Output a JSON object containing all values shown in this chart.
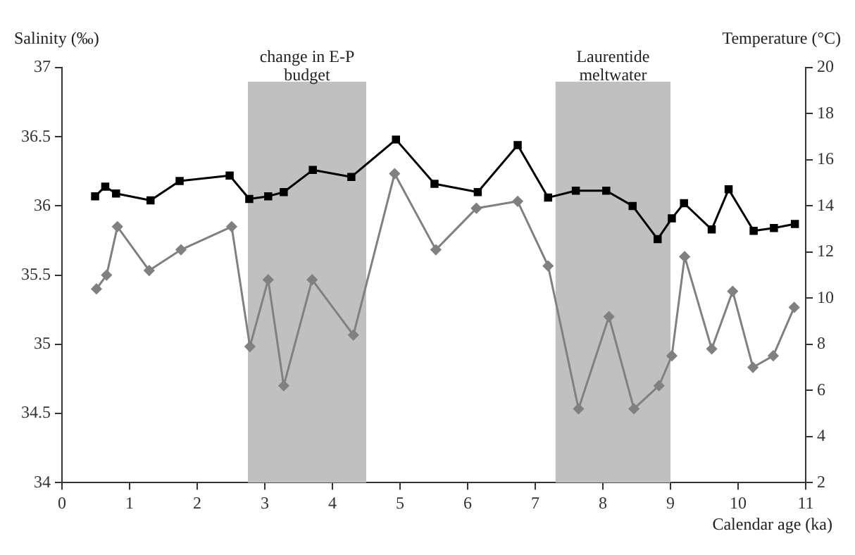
{
  "chart_data": {
    "type": "line",
    "xlabel": "Calendar age (ka)",
    "ylabel": "Salinity (‰)",
    "y2label": "Temperature (°C)",
    "xlim": [
      0,
      11
    ],
    "xticks": [
      0,
      1,
      2,
      3,
      4,
      5,
      6,
      7,
      8,
      9,
      10,
      11
    ],
    "ylim": [
      34,
      37
    ],
    "yticks": [
      34,
      34.5,
      35,
      35.5,
      36,
      36.5,
      37
    ],
    "y2lim": [
      2,
      20
    ],
    "y2ticks": [
      2,
      4,
      6,
      8,
      10,
      12,
      14,
      16,
      18,
      20
    ],
    "grid": false,
    "legend": false,
    "line_style": "solid",
    "series": [
      {
        "color": "#000000",
        "marker": "square",
        "axis": "y",
        "x": [
          0.49,
          0.64,
          0.8,
          1.31,
          1.74,
          2.48,
          2.77,
          3.05,
          3.28,
          3.71,
          4.28,
          4.94,
          5.51,
          6.15,
          6.74,
          7.19,
          7.6,
          8.05,
          8.44,
          8.81,
          9.02,
          9.2,
          9.61,
          9.86,
          10.23,
          10.53,
          10.84
        ],
        "values": [
          36.07,
          36.14,
          36.09,
          36.04,
          36.18,
          36.22,
          36.05,
          36.07,
          36.1,
          36.26,
          36.21,
          36.48,
          36.16,
          36.1,
          36.44,
          36.06,
          36.11,
          36.11,
          36.0,
          35.76,
          35.91,
          36.02,
          35.83,
          36.12,
          35.82,
          35.84,
          35.87
        ]
      },
      {
        "color": "#808080",
        "marker": "diamond",
        "axis": "y2",
        "x": [
          0.51,
          0.66,
          0.82,
          1.29,
          1.76,
          2.51,
          2.78,
          3.05,
          3.28,
          3.7,
          4.31,
          4.92,
          5.53,
          6.13,
          6.74,
          7.19,
          7.64,
          8.09,
          8.46,
          8.83,
          9.02,
          9.21,
          9.61,
          9.92,
          10.22,
          10.52,
          10.83
        ],
        "values": [
          10.4,
          11.0,
          13.1,
          11.2,
          12.1,
          13.1,
          7.9,
          10.8,
          6.2,
          10.8,
          8.4,
          15.4,
          12.1,
          13.9,
          14.2,
          11.4,
          5.2,
          9.2,
          5.2,
          6.2,
          7.5,
          11.8,
          7.8,
          10.3,
          7.0,
          7.5,
          9.6
        ]
      }
    ],
    "bands": [
      {
        "axis": "x",
        "from": 2.75,
        "to": 4.5,
        "label": "change in E-P budget",
        "color": "#c0c0c0"
      },
      {
        "axis": "x",
        "from": 7.3,
        "to": 9.0,
        "label": "Laurentide meltwater",
        "color": "#c0c0c0"
      }
    ]
  }
}
